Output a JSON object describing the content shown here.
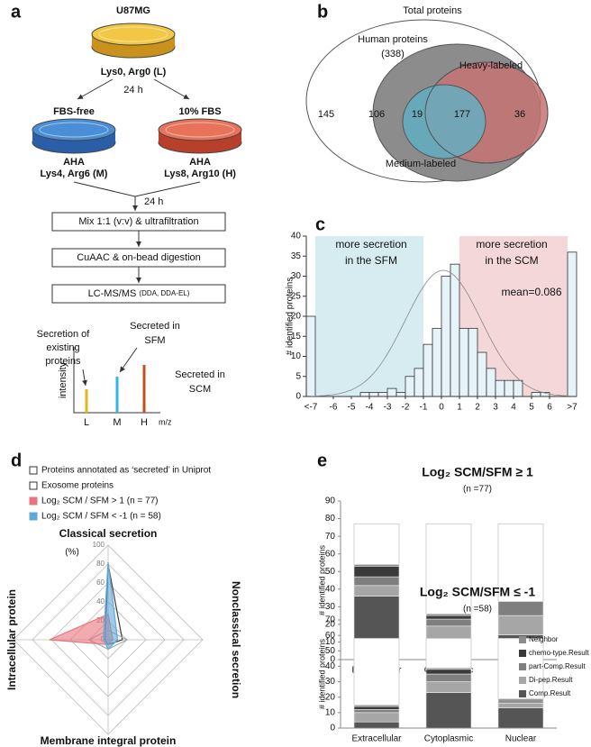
{
  "panel_labels": [
    "a",
    "b",
    "c",
    "d",
    "e"
  ],
  "panel_a": {
    "cell_line": "U87MG",
    "start_label": "Lys0, Arg0 (L)",
    "time_1": "24 h",
    "conditions": [
      {
        "name": "FBS-free",
        "reagent": "AHA",
        "label": "Lys4, Arg6 (M)"
      },
      {
        "name": "10% FBS",
        "reagent": "AHA",
        "label": "Lys8, Arg10 (H)"
      }
    ],
    "time_2": "24 h",
    "steps": [
      "Mix 1:1 (v:v) & ultrafiltration",
      "CuAAC & on-bead digestion"
    ],
    "final_step": {
      "name": "LC-MS/MS",
      "detail": "(DDA, DDA-EL)"
    },
    "spectrum": {
      "y_label": "intensity",
      "x_label": "m/z",
      "peaks": [
        "L",
        "M",
        "H"
      ],
      "annotations": [
        [
          "Secretion of",
          "existing",
          "proteins"
        ],
        [
          "Secreted in",
          "SFM"
        ],
        [
          "Secreted in",
          "SCM"
        ]
      ]
    }
  },
  "panel_b": {
    "title": "Total proteins",
    "human": "Human proteins",
    "human_count": "(338)",
    "heavy": "Heavy-labeled",
    "medium": "Medium-labeled",
    "counts": {
      "outside": 145,
      "human_only": 106,
      "medium_only": 19,
      "both": 177,
      "heavy_only": 36
    }
  },
  "chart_data": [
    {
      "type": "bar",
      "y_label": "# identified proteins",
      "categories": [
        "<-7",
        null,
        null,
        null,
        null,
        null,
        null,
        null,
        null,
        null,
        null,
        null,
        null,
        null,
        null,
        null,
        null,
        null,
        null,
        null,
        null,
        null,
        null,
        null,
        null,
        null,
        null,
        null,
        null,
        ">7"
      ],
      "values": [
        20,
        0,
        0,
        0,
        0,
        0,
        1,
        1,
        1,
        2,
        1,
        5,
        7,
        13,
        17,
        30,
        33,
        17,
        17,
        11,
        7,
        4,
        4,
        4,
        0,
        1,
        1,
        0,
        0,
        36
      ],
      "color": "#e6f3f8",
      "xlim": [
        -7.5,
        7.5
      ],
      "xticks": [
        -6,
        -5,
        -4,
        -3,
        -2,
        -1,
        0,
        1,
        2,
        3,
        4,
        5,
        6
      ],
      "ylim": [
        0,
        40
      ],
      "yticks": [
        0,
        5,
        10,
        15,
        20,
        25,
        30,
        35,
        40
      ],
      "annotations": [
        [
          "more secretion",
          "in the SFM"
        ],
        [
          "more secretion",
          "in the SCM"
        ],
        "mean=0.086"
      ]
    },
    {
      "type": "radar",
      "axes": [
        "Classical secretion",
        "Nonclassical secretion",
        "Membrane integral protein",
        "Intracellular protein"
      ],
      "unit_label": "(%)",
      "rlim": [
        0,
        100
      ],
      "rticks": [
        0,
        20,
        40,
        60,
        80,
        100
      ],
      "series": [
        {
          "name": "Proteins annotated as ‘secreted’ in Uniprot",
          "color": "#404040",
          "filled": false,
          "values": [
            80,
            15,
            5,
            3
          ]
        },
        {
          "name": "Exosome proteins",
          "color": "#a6a6a6",
          "filled": false,
          "values": [
            10,
            20,
            10,
            20
          ]
        },
        {
          "name": "Log₂ SCM / SFM > 1 (n = 77)",
          "color": "#e8737d",
          "filled": true,
          "values": [
            27,
            5,
            5,
            62
          ]
        },
        {
          "name": "Log₂ SCM / SFM < -1 (n = 58)",
          "color": "#5fa8d8",
          "filled": true,
          "values": [
            82,
            10,
            10,
            5
          ]
        }
      ]
    },
    {
      "type": "stacked_bar",
      "title": "Log₂ SCM/SFM ≥ 1",
      "n_label": "(n =77)",
      "n": 77,
      "y_label": "# identified proteins",
      "categories": [
        "Extracellular",
        "Cytoplasmic",
        "Nuclear"
      ],
      "series": [
        {
          "name": "Comp.Result",
          "color": "#555555",
          "values": [
            36,
            12,
            14
          ]
        },
        {
          "name": "Di-pep.Result",
          "color": "#a6a6a6",
          "values": [
            6,
            7,
            11
          ]
        },
        {
          "name": "part-Comp.Result",
          "color": "#7f7f7f",
          "values": [
            5,
            4,
            8
          ]
        },
        {
          "name": "chemo-type.Result",
          "color": "#3a3a3a",
          "values": [
            6,
            2,
            0
          ]
        },
        {
          "name": "Neighbor",
          "color": "#8c8c8c",
          "values": [
            1,
            1,
            0
          ]
        }
      ],
      "ylim": [
        0,
        90
      ],
      "yticks": [
        0,
        10,
        20,
        30,
        40,
        50,
        60,
        70,
        80,
        90
      ],
      "legend": false
    },
    {
      "type": "stacked_bar",
      "title": "Log₂ SCM/SFM ≤ -1",
      "n_label": "(n =58)",
      "n": 58,
      "y_label": "# identified proteins",
      "categories": [
        "Extracellular",
        "Cytoplasmic",
        "Nuclear"
      ],
      "series": [
        {
          "name": "Comp.Result",
          "color": "#555555",
          "values": [
            4,
            23,
            13
          ]
        },
        {
          "name": "Di-pep.Result",
          "color": "#a6a6a6",
          "values": [
            6,
            7,
            3
          ]
        },
        {
          "name": "part-Comp.Result",
          "color": "#7f7f7f",
          "values": [
            2,
            5,
            1
          ]
        },
        {
          "name": "chemo-type.Result",
          "color": "#3a3a3a",
          "values": [
            2,
            3,
            1
          ]
        },
        {
          "name": "Neighbor",
          "color": "#8c8c8c",
          "values": [
            1,
            1,
            1
          ]
        }
      ],
      "ylim": [
        0,
        70
      ],
      "yticks": [
        0,
        10,
        20,
        30,
        40,
        50,
        60,
        70
      ],
      "legend": true
    }
  ]
}
